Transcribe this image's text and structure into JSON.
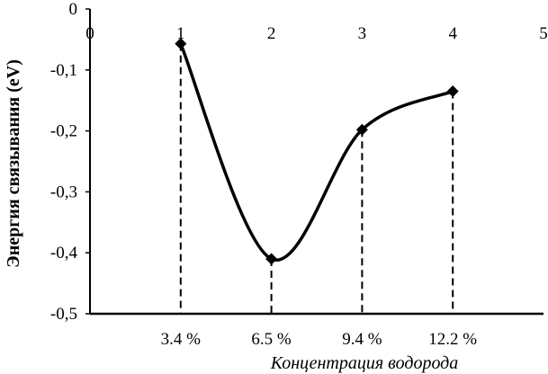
{
  "chart_data": {
    "type": "line",
    "title": "",
    "xlabel": "Концентрация водорода",
    "ylabel": "Энергия связывания (eV)",
    "xlim": [
      0,
      5
    ],
    "ylim": [
      -0.5,
      0
    ],
    "x_ticks": [
      "0",
      "1",
      "2",
      "3",
      "4",
      "5"
    ],
    "y_ticks": [
      "0",
      "-0,1",
      "-0,2",
      "-0,3",
      "-0,4",
      "-0,5"
    ],
    "y_tick_values": [
      0,
      -0.1,
      -0.2,
      -0.3,
      -0.4,
      -0.5
    ],
    "bottom_labels": [
      "3.4 %",
      "6.5 %",
      "9.4 %",
      "12.2 %"
    ],
    "series": [
      {
        "x": [
          1,
          2,
          3,
          4
        ],
        "values": [
          -0.057,
          -0.41,
          -0.198,
          -0.135
        ],
        "color": "#000000",
        "marker": "diamond",
        "smooth": true
      }
    ],
    "drop_lines": "dashed",
    "grid": false
  }
}
